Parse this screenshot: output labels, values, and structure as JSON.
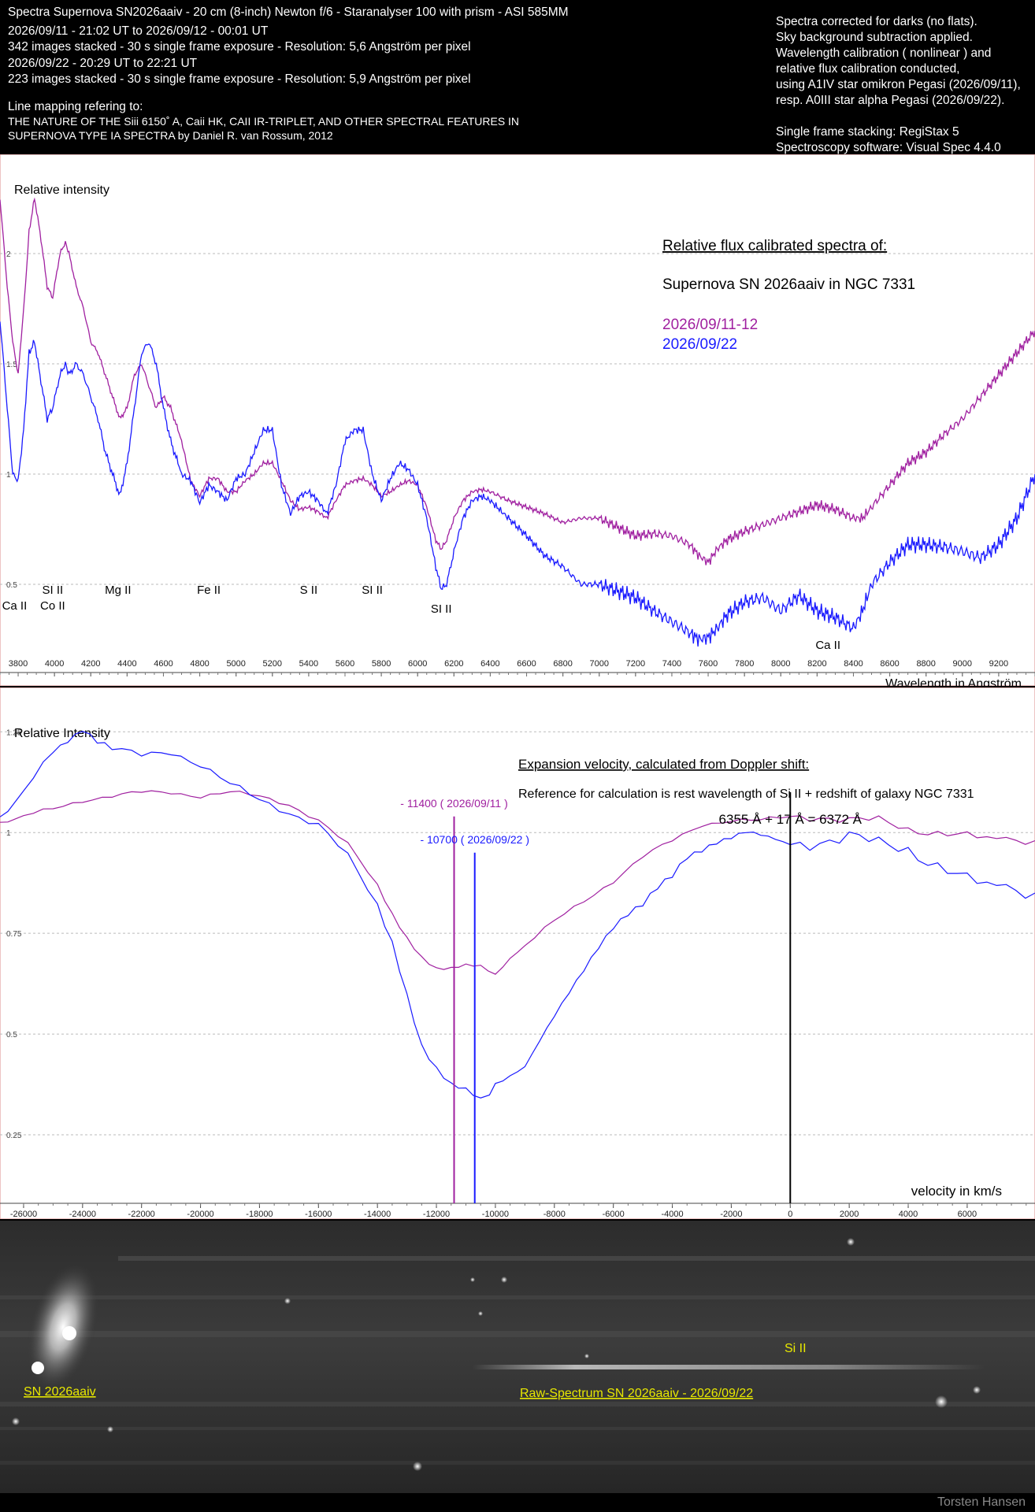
{
  "header": {
    "title": "Spectra Supernova SN2026aaiv - 20 cm (8-inch) Newton f/6 - Staranalyser 100 with prism - ASI 585MM",
    "left_lines": [
      "2026/09/11 - 21:02 UT to 2026/09/12 - 00:01 UT",
      "342 images stacked - 30 s single frame exposure - Resolution: 5,6 Angström per pixel",
      "2026/09/22 - 20:29 UT to 22:21 UT",
      "223 images stacked - 30 s single frame exposure - Resolution: 5,9 Angström per pixel"
    ],
    "mapping_title": "Line mapping refering to:",
    "mapping_lines": [
      "THE NATURE OF THE Siii 6150˚ A, Caii HK, CAII IR-TRIPLET, AND OTHER SPECTRAL FEATURES IN",
      "SUPERNOVA TYPE IA SPECTRA by Daniel R. van Rossum, 2012"
    ],
    "right_lines": [
      "Spectra corrected for darks (no flats).",
      "Sky background subtraction applied.",
      "Wavelength calibration ( nonlinear ) and",
      "relative flux calibration conducted,",
      "using A1IV star omikron Pegasi (2026/09/11),",
      "resp. A0III star alpha Pegasi (2026/09/22).",
      "",
      "Single frame stacking: RegiStax 5",
      "Spectroscopy software: Visual Spec 4.4.0"
    ]
  },
  "chart_data": [
    {
      "type": "line",
      "ylabel": "Relative intensity",
      "xlabel": "Wavelength in Angström",
      "xlim": [
        3700,
        9400
      ],
      "ylim": [
        0.1,
        2.45
      ],
      "xticks": [
        3800,
        4000,
        4200,
        4400,
        4600,
        4800,
        5000,
        5200,
        5400,
        5600,
        5800,
        6000,
        6200,
        6400,
        6600,
        6800,
        7000,
        7200,
        7400,
        7600,
        7800,
        8000,
        8200,
        8400,
        8600,
        8800,
        9000,
        9200
      ],
      "yticks": [
        {
          "v": 0.5,
          "label": "0.5"
        },
        {
          "v": 1,
          "label": "1"
        },
        {
          "v": 1.5,
          "label": "1.5"
        },
        {
          "v": 2,
          "label": "2"
        }
      ],
      "grid": true,
      "annotation_title": "Relative flux calibrated spectra of:",
      "annotation_object": "Supernova SN 2026aaiv in NGC 7331",
      "colors": {
        "s1": "#8b1a8b",
        "s2": "#1a1aff"
      },
      "series": [
        {
          "name": "2026/09/11-12",
          "color": "#a020a0",
          "x": [
            3700,
            3740,
            3770,
            3800,
            3840,
            3860,
            3890,
            3920,
            3960,
            3990,
            4030,
            4060,
            4080,
            4120,
            4160,
            4200,
            4240,
            4280,
            4320,
            4360,
            4400,
            4440,
            4480,
            4520,
            4560,
            4600,
            4640,
            4680,
            4700,
            4750,
            4800,
            4850,
            4900,
            4950,
            5000,
            5050,
            5100,
            5150,
            5200,
            5250,
            5300,
            5350,
            5400,
            5450,
            5500,
            5550,
            5600,
            5650,
            5700,
            5750,
            5800,
            5850,
            5900,
            5950,
            6000,
            6050,
            6100,
            6130,
            6160,
            6200,
            6250,
            6300,
            6350,
            6400,
            6500,
            6600,
            6700,
            6800,
            6900,
            7000,
            7100,
            7200,
            7300,
            7400,
            7500,
            7550,
            7600,
            7650,
            7700,
            7800,
            7900,
            8000,
            8100,
            8200,
            8300,
            8400,
            8450,
            8500,
            8600,
            8700,
            8800,
            8900,
            9000,
            9100,
            9200,
            9300,
            9400
          ],
          "y": [
            2.25,
            1.85,
            1.6,
            1.45,
            1.85,
            2.1,
            2.25,
            2.1,
            1.85,
            1.8,
            2.0,
            2.05,
            2.0,
            1.85,
            1.75,
            1.6,
            1.55,
            1.45,
            1.35,
            1.25,
            1.3,
            1.45,
            1.5,
            1.4,
            1.3,
            1.35,
            1.3,
            1.2,
            1.15,
            0.97,
            0.9,
            0.98,
            0.98,
            0.92,
            0.92,
            0.97,
            1.0,
            1.05,
            1.05,
            0.97,
            0.88,
            0.84,
            0.85,
            0.83,
            0.8,
            0.88,
            0.95,
            0.97,
            0.98,
            0.95,
            0.9,
            0.92,
            0.95,
            0.97,
            0.95,
            0.85,
            0.7,
            0.66,
            0.7,
            0.8,
            0.88,
            0.92,
            0.93,
            0.92,
            0.88,
            0.85,
            0.82,
            0.78,
            0.8,
            0.8,
            0.76,
            0.72,
            0.73,
            0.72,
            0.68,
            0.63,
            0.6,
            0.66,
            0.7,
            0.74,
            0.77,
            0.8,
            0.83,
            0.86,
            0.84,
            0.8,
            0.8,
            0.85,
            0.95,
            1.05,
            1.1,
            1.18,
            1.25,
            1.35,
            1.45,
            1.55,
            1.65
          ]
        },
        {
          "name": "2026/09/22",
          "color": "#1a1aff",
          "x": [
            3700,
            3740,
            3770,
            3800,
            3830,
            3860,
            3890,
            3920,
            3960,
            3990,
            4030,
            4060,
            4080,
            4120,
            4160,
            4200,
            4240,
            4280,
            4320,
            4360,
            4400,
            4440,
            4480,
            4520,
            4560,
            4600,
            4640,
            4680,
            4700,
            4750,
            4800,
            4850,
            4900,
            4950,
            5000,
            5050,
            5100,
            5150,
            5200,
            5250,
            5300,
            5350,
            5400,
            5450,
            5500,
            5550,
            5600,
            5650,
            5700,
            5750,
            5800,
            5850,
            5900,
            5950,
            6000,
            6050,
            6100,
            6130,
            6160,
            6200,
            6250,
            6300,
            6350,
            6400,
            6450,
            6500,
            6600,
            6700,
            6800,
            6900,
            7000,
            7100,
            7200,
            7300,
            7400,
            7500,
            7550,
            7600,
            7650,
            7700,
            7800,
            7900,
            8000,
            8100,
            8200,
            8300,
            8400,
            8450,
            8500,
            8600,
            8700,
            8800,
            8900,
            9000,
            9100,
            9200,
            9300,
            9400
          ],
          "y": [
            1.7,
            1.3,
            1.0,
            0.97,
            1.2,
            1.55,
            1.6,
            1.45,
            1.25,
            1.3,
            1.45,
            1.5,
            1.45,
            1.5,
            1.45,
            1.35,
            1.25,
            1.1,
            1.0,
            0.9,
            1.05,
            1.3,
            1.55,
            1.6,
            1.5,
            1.3,
            1.15,
            1.05,
            1.0,
            0.97,
            0.87,
            0.95,
            0.92,
            0.88,
            0.98,
            1.0,
            1.1,
            1.2,
            1.2,
            0.95,
            0.82,
            0.9,
            0.92,
            0.88,
            0.82,
            0.95,
            1.15,
            1.2,
            1.2,
            1.0,
            0.88,
            0.98,
            1.05,
            1.02,
            0.95,
            0.8,
            0.58,
            0.48,
            0.5,
            0.65,
            0.8,
            0.88,
            0.9,
            0.88,
            0.84,
            0.8,
            0.72,
            0.63,
            0.58,
            0.5,
            0.5,
            0.47,
            0.44,
            0.38,
            0.33,
            0.28,
            0.25,
            0.26,
            0.3,
            0.36,
            0.42,
            0.44,
            0.38,
            0.45,
            0.38,
            0.35,
            0.3,
            0.38,
            0.5,
            0.6,
            0.68,
            0.68,
            0.67,
            0.65,
            0.62,
            0.68,
            0.8,
            1.0
          ]
        }
      ],
      "line_labels": [
        {
          "text": "Ca II",
          "x": 3780,
          "level": 1
        },
        {
          "text": "SI II",
          "x": 3990,
          "level": 0
        },
        {
          "text": "Co II",
          "x": 3990,
          "level": 1
        },
        {
          "text": "Mg II",
          "x": 4350,
          "level": 0
        },
        {
          "text": "Fe II",
          "x": 4850,
          "level": 0
        },
        {
          "text": "S II",
          "x": 5400,
          "level": 0
        },
        {
          "text": "SI II",
          "x": 5750,
          "level": 0
        },
        {
          "text": "SI II",
          "x": 6130,
          "level": 2
        },
        {
          "text": "Ca II",
          "x": 8260,
          "level": 4
        }
      ]
    },
    {
      "type": "line",
      "ylabel": "Relative Intensity",
      "xlabel": "velocity in km/s",
      "xlim": [
        -26800,
        8300
      ],
      "ylim": [
        0.08,
        1.36
      ],
      "xticks": [
        -26000,
        -24000,
        -22000,
        -20000,
        -18000,
        -16000,
        -14000,
        -12000,
        -10000,
        -8000,
        -6000,
        -4000,
        -2000,
        0,
        2000,
        4000,
        6000
      ],
      "yticks": [
        {
          "v": 0.25,
          "label": "0.25"
        },
        {
          "v": 0.5,
          "label": "0.5"
        },
        {
          "v": 0.75,
          "label": "0.75"
        },
        {
          "v": 1,
          "label": "1"
        },
        {
          "v": 1.25,
          "label": "1.25"
        }
      ],
      "grid": true,
      "annotation_title": "Expansion velocity, calculated from Doppler shift:",
      "annotation_ref": "Reference for calculation is rest wavelength of Si II + redshift of galaxy NGC 7331",
      "annotation_formula": "6355 Å + 17 Å = 6372 Å",
      "markers": [
        {
          "x": -11400,
          "label": "- 11400 ( 2026/09/11 )",
          "color": "#a020a0",
          "top": 1.04
        },
        {
          "x": -10700,
          "label": "- 10700 ( 2026/09/22 )",
          "color": "#1a1aff",
          "top": 0.95
        },
        {
          "x": 0,
          "label": "",
          "color": "#000000",
          "top": 1.1
        }
      ],
      "series": [
        {
          "name": "2026/09/11",
          "color": "#a020a0",
          "x": [
            -26800,
            -26000,
            -25000,
            -24000,
            -23000,
            -22000,
            -21000,
            -20000,
            -19000,
            -18000,
            -17000,
            -16000,
            -15000,
            -14000,
            -13500,
            -13000,
            -12500,
            -12000,
            -11500,
            -11000,
            -10500,
            -10000,
            -9500,
            -9000,
            -8000,
            -7000,
            -6000,
            -5000,
            -4000,
            -3000,
            -2000,
            -1000,
            0,
            1000,
            2000,
            3000,
            4000,
            5000,
            6000,
            7000,
            8300
          ],
          "y": [
            1.02,
            1.04,
            1.06,
            1.08,
            1.09,
            1.1,
            1.1,
            1.09,
            1.1,
            1.09,
            1.07,
            1.03,
            0.97,
            0.87,
            0.8,
            0.74,
            0.69,
            0.66,
            0.66,
            0.67,
            0.67,
            0.65,
            0.69,
            0.72,
            0.78,
            0.83,
            0.88,
            0.94,
            0.98,
            1.02,
            1.03,
            1.03,
            1.04,
            1.04,
            1.03,
            1.03,
            1.01,
            1.0,
            0.99,
            0.98,
            0.98
          ]
        },
        {
          "name": "2026/09/22",
          "color": "#1a1aff",
          "x": [
            -26800,
            -26000,
            -25000,
            -24500,
            -24000,
            -23500,
            -23000,
            -22000,
            -21000,
            -20000,
            -19000,
            -18000,
            -17000,
            -16000,
            -15000,
            -14000,
            -13500,
            -13000,
            -12500,
            -12000,
            -11500,
            -11000,
            -10500,
            -10200,
            -10000,
            -9500,
            -9000,
            -8500,
            -8000,
            -7500,
            -7000,
            -6500,
            -6000,
            -5500,
            -5000,
            -4500,
            -4000,
            -3500,
            -3000,
            -2500,
            -2000,
            -1500,
            -1000,
            -500,
            0,
            1000,
            2000,
            3000,
            4000,
            5000,
            6000,
            7000,
            8300
          ],
          "y": [
            1.03,
            1.1,
            1.2,
            1.23,
            1.26,
            1.23,
            1.21,
            1.19,
            1.2,
            1.17,
            1.12,
            1.08,
            1.05,
            1.02,
            0.94,
            0.82,
            0.73,
            0.6,
            0.47,
            0.41,
            0.37,
            0.36,
            0.34,
            0.35,
            0.38,
            0.4,
            0.42,
            0.48,
            0.54,
            0.6,
            0.66,
            0.72,
            0.77,
            0.8,
            0.82,
            0.86,
            0.89,
            0.94,
            0.96,
            0.98,
            0.99,
            1.0,
            0.99,
            0.98,
            0.97,
            0.98,
            0.99,
            0.97,
            0.96,
            0.92,
            0.88,
            0.86,
            0.85
          ]
        }
      ]
    }
  ],
  "raw": {
    "sn_label": "SN 2026aaiv",
    "spectrum_label": "Raw-Spectrum SN 2026aaiv - 2026/09/22",
    "si_label": "Si II",
    "label_color": "#e8e800"
  },
  "footer": "Torsten Hansen"
}
